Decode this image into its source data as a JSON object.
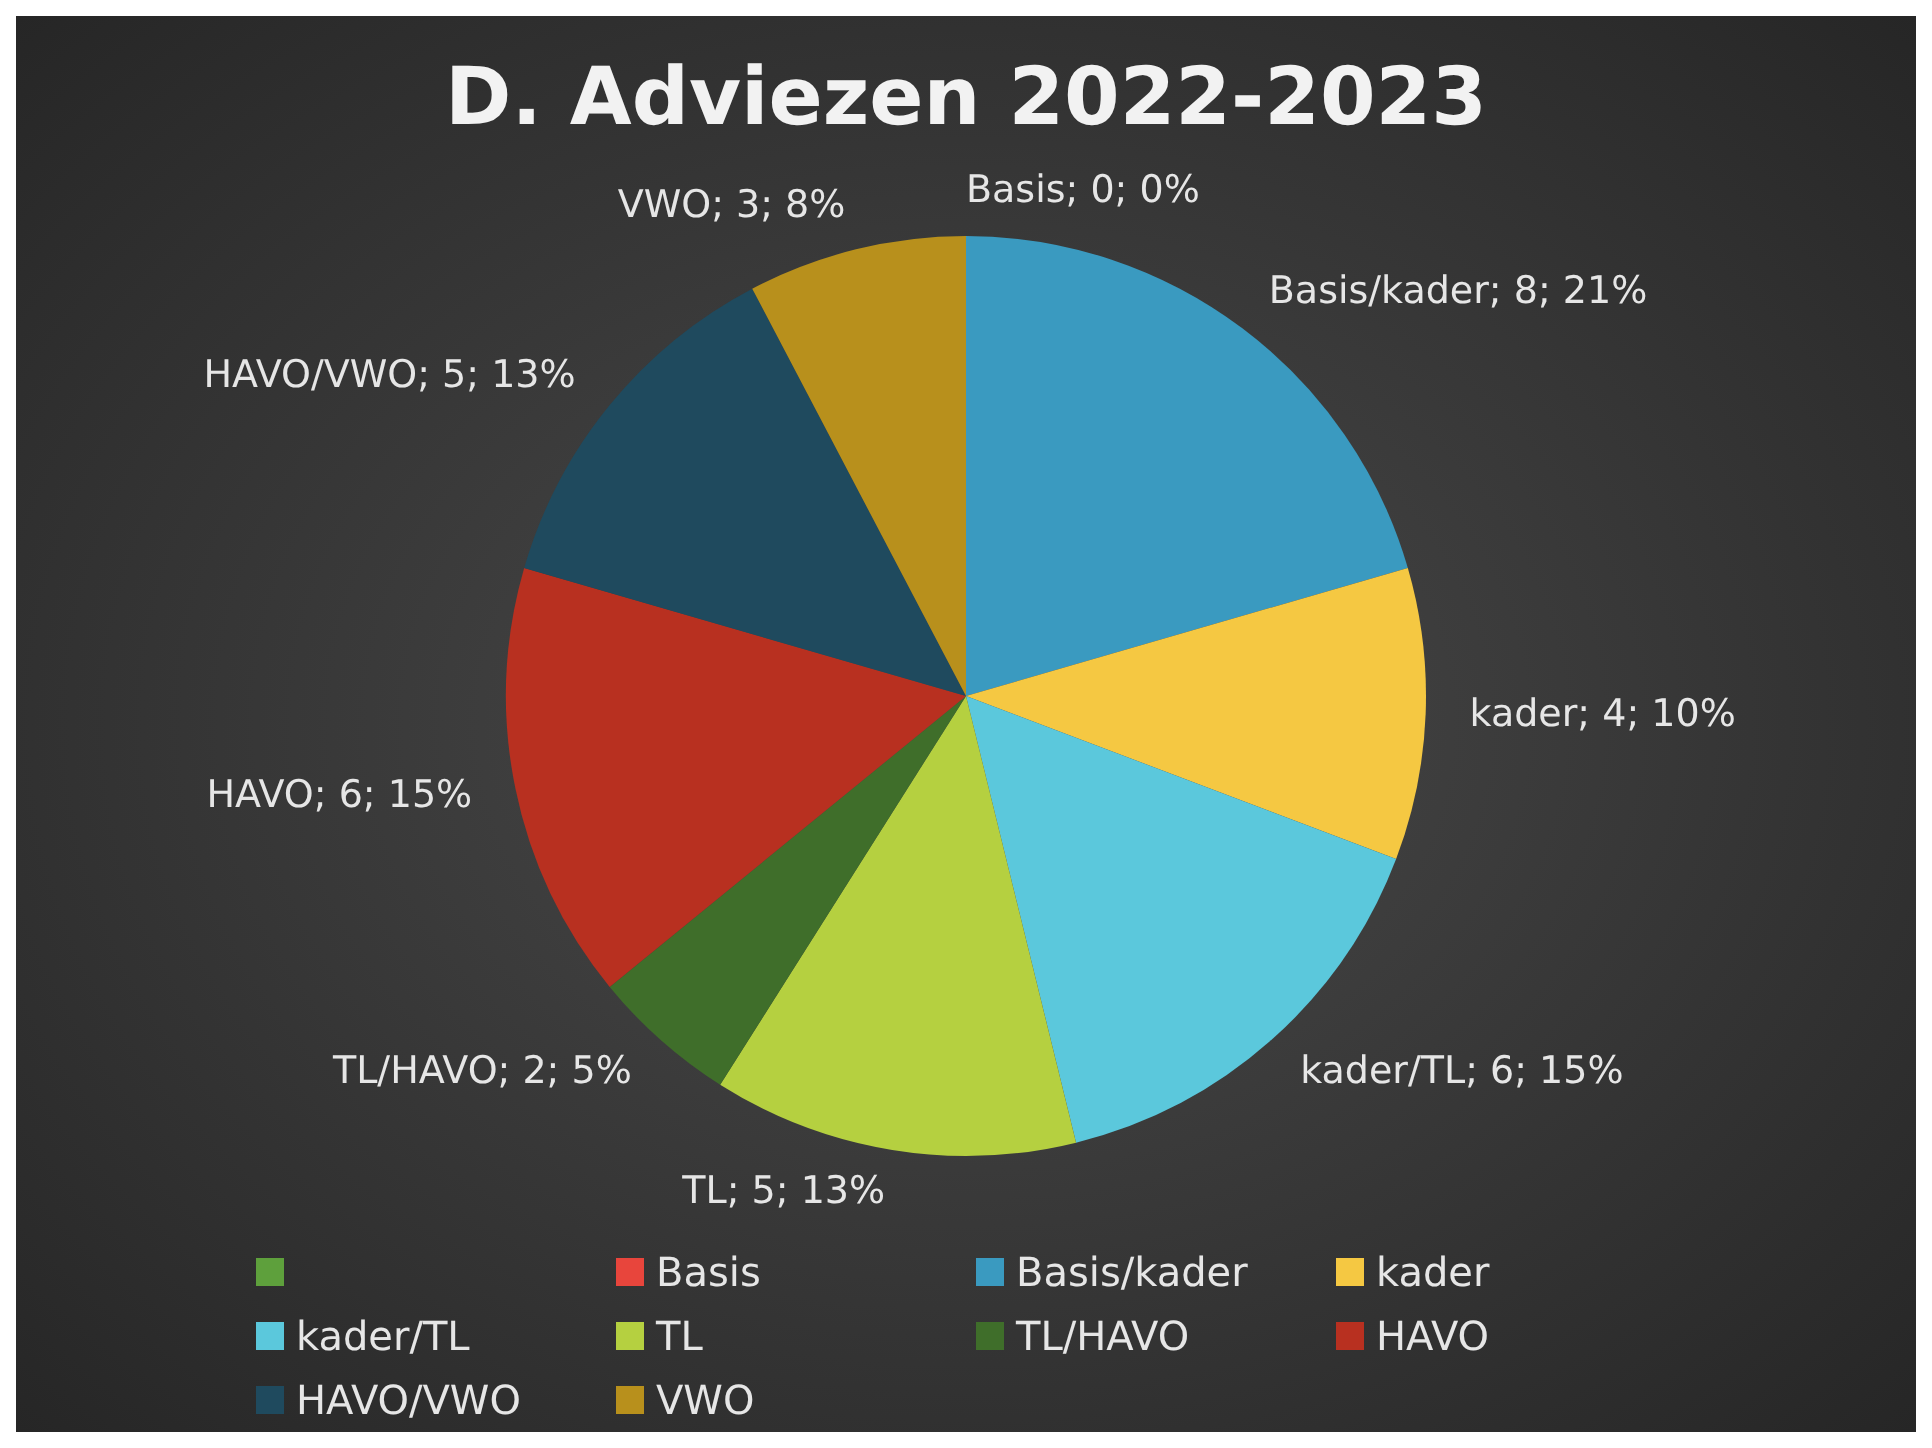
{
  "chart_data": {
    "type": "pie",
    "title": "D. Adviezen 2022-2023",
    "categories": [
      null,
      "Basis",
      "Basis/kader",
      "kader",
      "kader/TL",
      "TL",
      "TL/HAVO",
      "HAVO",
      "HAVO/VWO",
      "VWO"
    ],
    "values": [
      0,
      0,
      8,
      4,
      6,
      5,
      2,
      6,
      5,
      3
    ],
    "colors": [
      "#5ea03c",
      "#e8453c",
      "#3a9ac0",
      "#f5c842",
      "#5bc8dc",
      "#b5d040",
      "#3f6e2a",
      "#b83020",
      "#1f4a5e",
      "#b8901c"
    ],
    "value_labels": [
      null,
      "Basis; 0; 0%",
      "Basis/kader; 8; 21%",
      "kader; 4; 10%",
      "kader/TL; 6; 15%",
      "TL; 5; 13%",
      "TL/HAVO; 2; 5%",
      "HAVO; 6; 15%",
      "HAVO/VWO; 5; 13%",
      "VWO; 3; 8%"
    ],
    "legend": "bottom"
  }
}
